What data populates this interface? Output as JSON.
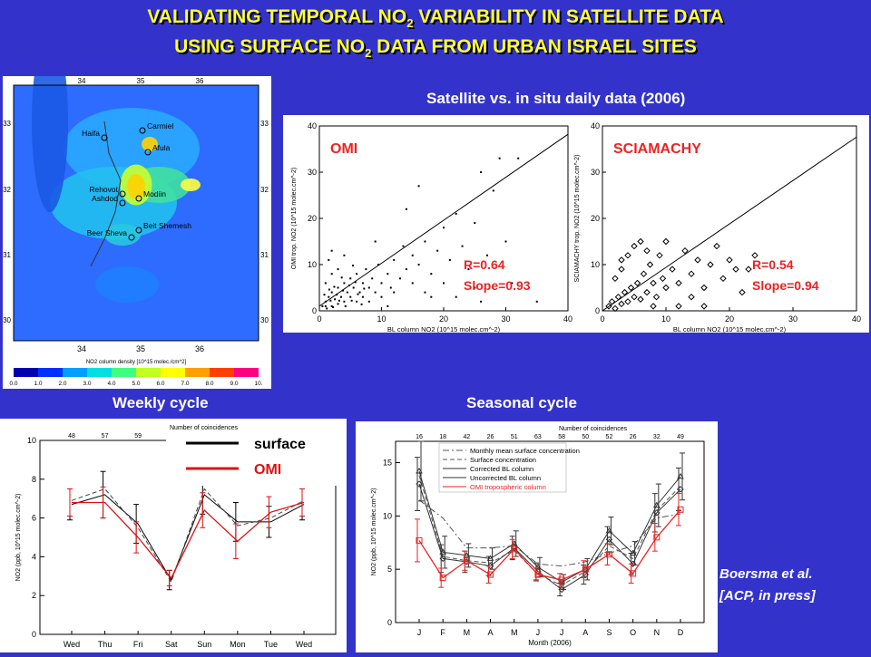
{
  "title": {
    "line1_pre": "VALIDATING TEMPORAL NO",
    "line1_sub": "2",
    "line1_post": " VARIABILITY IN SATELLITE DATA",
    "line2_pre": "USING SURFACE NO",
    "line2_sub": "2",
    "line2_post": " DATA FROM URBAN ISRAEL SITES"
  },
  "map": {
    "top_ticks": [
      "34",
      "35",
      "36"
    ],
    "bottom_ticks": [
      "34",
      "35",
      "36"
    ],
    "left_ticks": [
      "33",
      "32",
      "31",
      "30"
    ],
    "right_ticks": [
      "33",
      "32",
      "31",
      "30"
    ],
    "sites": [
      "Haifa",
      "Carmiel",
      "Afula",
      "Rehovot",
      "Ashdod",
      "Modiin",
      "Beer Sheva",
      "Beit Shemesh"
    ],
    "colorbar_label": "NO2 column density [10^15 molec./cm^2]",
    "colorbar_ticks": [
      "0.0",
      "1.0",
      "2.0",
      "3.0",
      "4.0",
      "5.0",
      "6.0",
      "7.0",
      "8.0",
      "9.0",
      "10."
    ],
    "colors": [
      "#0000b0",
      "#0030ff",
      "#00a0ff",
      "#00e0e0",
      "#40ff80",
      "#c0ff20",
      "#ffff00",
      "#ffa000",
      "#ff4000",
      "#ff0080"
    ]
  },
  "chart_data": [
    {
      "type": "scatter",
      "panel": "OMI",
      "title": "Satellite vs. in situ daily data (2006)",
      "label": "OMI",
      "xlabel": "BL column NO2 (10^15 molec.cm^-2)",
      "ylabel": "OMI trop. NO2 (10^15 molec.cm^-2)",
      "xlim": [
        0,
        40
      ],
      "ylim": [
        0,
        40
      ],
      "xticks": [
        "0",
        "10",
        "20",
        "30",
        "40"
      ],
      "yticks": [
        "0",
        "10",
        "20",
        "30",
        "40"
      ],
      "stats": [
        "R=0.64",
        "Slope=0.93"
      ],
      "fit": {
        "slope": 0.93,
        "intercept": 1
      },
      "points": [
        [
          1,
          2
        ],
        [
          1.5,
          3
        ],
        [
          2,
          1
        ],
        [
          2,
          4
        ],
        [
          2.5,
          2.5
        ],
        [
          3,
          5
        ],
        [
          3,
          1.5
        ],
        [
          3.5,
          3
        ],
        [
          4,
          2
        ],
        [
          4,
          6
        ],
        [
          4.5,
          4
        ],
        [
          5,
          3
        ],
        [
          5,
          7
        ],
        [
          5.5,
          5
        ],
        [
          6,
          2
        ],
        [
          6,
          8
        ],
        [
          6.5,
          4
        ],
        [
          7,
          6
        ],
        [
          7,
          3
        ],
        [
          7.5,
          9
        ],
        [
          8,
          5
        ],
        [
          8,
          2
        ],
        [
          8.5,
          7
        ],
        [
          9,
          4
        ],
        [
          9.5,
          10
        ],
        [
          10,
          6
        ],
        [
          10,
          3
        ],
        [
          11,
          8
        ],
        [
          11.5,
          5
        ],
        [
          12,
          11
        ],
        [
          12,
          4
        ],
        [
          13,
          7
        ],
        [
          13.5,
          14
        ],
        [
          14,
          9
        ],
        [
          15,
          6
        ],
        [
          15,
          12
        ],
        [
          16,
          10
        ],
        [
          17,
          4
        ],
        [
          17,
          15
        ],
        [
          18,
          8
        ],
        [
          19,
          13
        ],
        [
          20,
          6
        ],
        [
          20,
          18
        ],
        [
          21,
          11
        ],
        [
          22,
          3
        ],
        [
          22,
          21
        ],
        [
          24,
          9
        ],
        [
          25,
          5
        ],
        [
          25,
          19
        ],
        [
          26,
          2
        ],
        [
          27,
          12
        ],
        [
          28,
          26
        ],
        [
          30,
          15
        ],
        [
          31,
          6
        ],
        [
          32,
          33
        ],
        [
          1,
          6
        ],
        [
          2,
          8
        ],
        [
          1.5,
          11
        ],
        [
          3,
          9
        ],
        [
          0.5,
          1
        ],
        [
          1,
          1
        ],
        [
          1.2,
          0.5
        ],
        [
          2.2,
          0.8
        ],
        [
          2.8,
          3.5
        ],
        [
          3.2,
          2.2
        ],
        [
          3.8,
          4.4
        ],
        [
          4.2,
          1
        ],
        [
          4.8,
          5.5
        ],
        [
          5.2,
          2.2
        ],
        [
          5.8,
          6.2
        ],
        [
          6.2,
          3.6
        ],
        [
          6.8,
          1.4
        ],
        [
          7.2,
          4.8
        ],
        [
          1.8,
          2.2
        ],
        [
          2.4,
          5.2
        ],
        [
          0.8,
          3.5
        ],
        [
          1.6,
          4.6
        ],
        [
          3.6,
          7.2
        ],
        [
          5.4,
          9.8
        ],
        [
          14,
          22
        ],
        [
          18,
          3
        ],
        [
          29,
          33
        ],
        [
          35,
          2
        ],
        [
          16,
          27
        ],
        [
          9,
          15
        ],
        [
          11,
          1
        ],
        [
          23,
          14
        ],
        [
          26,
          30
        ],
        [
          2,
          13
        ],
        [
          4,
          12
        ]
      ]
    },
    {
      "type": "scatter",
      "panel": "SCIAMACHY",
      "label": "SCIAMACHY",
      "xlabel": "BL column NO2 (10^15 molec.cm^-2)",
      "ylabel": "SCIAMACHY trop. NO2 (10^15 molec.cm^-2)",
      "xlim": [
        0,
        40
      ],
      "ylim": [
        0,
        40
      ],
      "xticks": [
        "0",
        "10",
        "20",
        "30",
        "40"
      ],
      "yticks": [
        "0",
        "10",
        "20",
        "30",
        "40"
      ],
      "stats": [
        "R=0.54",
        "Slope=0.94"
      ],
      "fit": {
        "slope": 0.94,
        "intercept": 0
      },
      "points": [
        [
          1,
          1
        ],
        [
          1.5,
          2
        ],
        [
          2,
          0.5
        ],
        [
          2.5,
          3
        ],
        [
          3,
          1.5
        ],
        [
          3.5,
          4
        ],
        [
          4,
          2
        ],
        [
          4.5,
          5
        ],
        [
          5,
          3
        ],
        [
          5.5,
          6
        ],
        [
          6,
          2.5
        ],
        [
          6.5,
          8
        ],
        [
          7,
          4
        ],
        [
          7.5,
          10
        ],
        [
          8,
          6
        ],
        [
          8.5,
          3
        ],
        [
          9,
          12
        ],
        [
          9.5,
          7
        ],
        [
          10,
          5
        ],
        [
          10,
          15
        ],
        [
          11,
          9
        ],
        [
          12,
          6
        ],
        [
          13,
          13
        ],
        [
          14,
          8
        ],
        [
          15,
          11
        ],
        [
          16,
          5
        ],
        [
          17,
          10
        ],
        [
          18,
          14
        ],
        [
          19,
          7
        ],
        [
          20,
          11
        ],
        [
          21,
          9
        ],
        [
          22,
          4
        ],
        [
          23,
          9
        ],
        [
          3,
          11
        ],
        [
          4,
          12
        ],
        [
          5,
          14
        ],
        [
          6,
          15
        ],
        [
          2,
          7
        ],
        [
          3,
          9
        ],
        [
          7,
          13
        ],
        [
          8,
          1
        ],
        [
          12,
          1
        ],
        [
          14,
          3
        ],
        [
          16,
          1
        ],
        [
          24,
          12
        ]
      ]
    },
    {
      "type": "line",
      "panel": "weekly",
      "title": "Weekly cycle",
      "categories": [
        "Wed",
        "Thu",
        "Fri",
        "Sat",
        "Sun",
        "Mon",
        "Tue",
        "Wed"
      ],
      "top_axis_label": "Number of coincidences",
      "top_counts": [
        "48",
        "57",
        "59",
        "",
        "",
        "",
        "",
        ""
      ],
      "ylabel": "NO2 (ppb, 10^15 molec.cm^-2)",
      "ylim": [
        0,
        10
      ],
      "yticks": [
        "0",
        "2",
        "4",
        "6",
        "8",
        "10"
      ],
      "legend": [
        {
          "name": "surface",
          "color": "#000000"
        },
        {
          "name": "OMI",
          "color": "#dd1111"
        }
      ],
      "series": [
        {
          "name": "surface",
          "color": "#000000",
          "dash": "none",
          "values": [
            6.7,
            7.2,
            5.7,
            2.8,
            7.2,
            5.8,
            5.8,
            6.7
          ],
          "errors": [
            0.8,
            1.2,
            1.0,
            0.5,
            1.0,
            1.0,
            0.8,
            0.8
          ]
        },
        {
          "name": "",
          "color": "#444444",
          "dash": "5,3",
          "values": [
            6.9,
            7.5,
            5.5,
            2.7,
            7.5,
            5.6,
            6.0,
            6.9
          ],
          "errors": [
            0,
            0,
            0,
            0,
            0,
            0,
            0,
            0
          ]
        },
        {
          "name": "OMI",
          "color": "#dd1111",
          "dash": "none",
          "values": [
            6.8,
            6.8,
            5.0,
            2.9,
            6.4,
            4.8,
            6.3,
            6.8
          ],
          "errors": [
            0.7,
            0.8,
            0.8,
            0.4,
            0.9,
            0.9,
            0.8,
            0.7
          ]
        }
      ]
    },
    {
      "type": "line",
      "panel": "seasonal",
      "title": "Seasonal cycle",
      "categories": [
        "J",
        "F",
        "M",
        "A",
        "M",
        "J",
        "J",
        "A",
        "S",
        "O",
        "N",
        "D"
      ],
      "xlabel": "Month (2006)",
      "top_axis_label": "Number of coincidences",
      "top_counts": [
        "16",
        "18",
        "42",
        "26",
        "51",
        "63",
        "58",
        "50",
        "52",
        "26",
        "32",
        "49"
      ],
      "ylabel": "NO2 (ppb, 10^15 molec.cm^-2)",
      "ylim": [
        0,
        17
      ],
      "yticks": [
        "0",
        "5",
        "10",
        "15"
      ],
      "legend": [
        {
          "name": "Monthly mean surface concentration",
          "color": "#555555"
        },
        {
          "name": "Surface concentration",
          "color": "#555555"
        },
        {
          "name": "Corrected BL column",
          "color": "#333333"
        },
        {
          "name": "Uncorrected BL column",
          "color": "#333333"
        },
        {
          "name": "OMI tropospheric column",
          "color": "#ee2222"
        }
      ],
      "series": [
        {
          "name": "Monthly mean surface concentration",
          "color": "#555555",
          "dash": "7,3,2,3",
          "values": [
            11.5,
            9.8,
            7.0,
            7.0,
            7.2,
            5.5,
            5.3,
            5.7,
            6.5,
            7.2,
            9.8,
            10.2
          ],
          "errors": [
            0,
            0,
            0,
            0,
            0,
            0,
            0,
            0,
            0,
            0,
            0,
            0
          ]
        },
        {
          "name": "Surface concentration",
          "color": "#555555",
          "dash": "5,3",
          "values": [
            13.8,
            6.2,
            5.8,
            5.6,
            6.8,
            4.5,
            3.5,
            4.8,
            7.2,
            6.0,
            10.5,
            12.8
          ],
          "errors": [
            0,
            0,
            0,
            0,
            0,
            0,
            0,
            0,
            0,
            0,
            0,
            0
          ]
        },
        {
          "name": "Corrected BL column",
          "color": "#333333",
          "dash": "none",
          "values": [
            13.0,
            6.0,
            5.7,
            5.3,
            7.0,
            4.8,
            3.1,
            4.5,
            7.8,
            5.5,
            10.3,
            12.5
          ],
          "errors": [
            2.5,
            1.3,
            1.0,
            0.9,
            1.1,
            0.8,
            0.6,
            0.9,
            1.2,
            1.0,
            1.8,
            2.0
          ]
        },
        {
          "name": "Uncorrected BL column",
          "color": "#333333",
          "dash": "none",
          "values": [
            14.2,
            6.6,
            6.3,
            6.0,
            7.4,
            5.2,
            3.8,
            5.0,
            8.6,
            6.5,
            11.0,
            13.7
          ],
          "errors": [
            2.8,
            1.5,
            1.1,
            1.0,
            1.2,
            0.9,
            0.7,
            1.0,
            1.3,
            1.1,
            2.0,
            2.2
          ]
        },
        {
          "name": "OMI tropospheric column",
          "color": "#ee2222",
          "dash": "none",
          "values": [
            7.7,
            4.2,
            5.8,
            4.5,
            6.9,
            4.5,
            4.0,
            5.0,
            6.4,
            4.6,
            8.0,
            10.6
          ],
          "errors": [
            2.0,
            0.9,
            0.9,
            0.8,
            0.9,
            0.6,
            0.6,
            0.8,
            1.0,
            0.9,
            1.3,
            1.5
          ]
        }
      ]
    }
  ],
  "headers": {
    "scatter": "Satellite vs. in situ daily data (2006)",
    "weekly": "Weekly cycle",
    "seasonal": "Seasonal cycle"
  },
  "citation": {
    "line1": "Boersma et al.",
    "line2": "[ACP, in press]"
  }
}
